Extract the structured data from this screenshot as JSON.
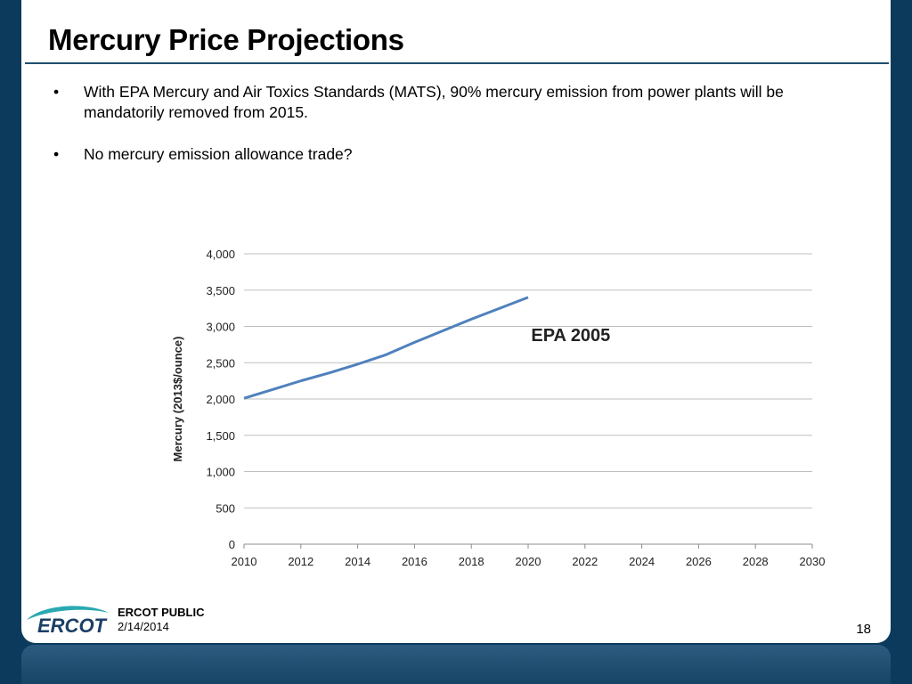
{
  "slide": {
    "title": "Mercury Price Projections",
    "bullets": [
      "With EPA Mercury and Air Toxics Standards (MATS), 90% mercury emission from power plants will be mandatorily removed from 2015.",
      "No mercury emission allowance trade?"
    ],
    "bullet_marker": "•"
  },
  "chart_data": {
    "type": "line",
    "title": "",
    "xlabel": "",
    "ylabel": "Mercury (2013$/ounce)",
    "xlim": [
      2010,
      2030
    ],
    "ylim": [
      0,
      4000
    ],
    "x_ticks": [
      2010,
      2012,
      2014,
      2016,
      2018,
      2020,
      2022,
      2024,
      2026,
      2028,
      2030
    ],
    "y_ticks": [
      0,
      500,
      1000,
      1500,
      2000,
      2500,
      3000,
      3500,
      4000
    ],
    "y_tick_labels": [
      "0",
      "500",
      "1,000",
      "1,500",
      "2,000",
      "2,500",
      "3,000",
      "3,500",
      "4,000"
    ],
    "grid": "horizontal",
    "series": [
      {
        "name": "EPA 2005",
        "color": "#4f81bd",
        "x": [
          2010,
          2011,
          2012,
          2013,
          2014,
          2015,
          2016,
          2017,
          2018,
          2019,
          2020
        ],
        "y": [
          2010,
          2130,
          2250,
          2360,
          2480,
          2610,
          2780,
          2940,
          3100,
          3250,
          3400
        ]
      }
    ],
    "annotations": [
      {
        "text": "EPA 2005",
        "x": 2021.5,
        "y": 2800
      }
    ]
  },
  "footer": {
    "logo_text": "ERCOT",
    "classification": "ERCOT PUBLIC",
    "date": "2/14/2014",
    "page_number": "18"
  },
  "colors": {
    "background": "#0b3a5c",
    "title_rule": "#1f4e6e",
    "series_line": "#4f81bd",
    "logo_teal": "#2aa9b0",
    "logo_navy": "#1b3f66"
  }
}
